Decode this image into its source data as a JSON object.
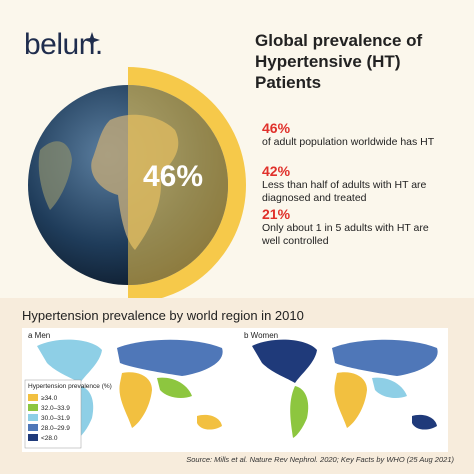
{
  "header": {
    "logo": "belun.",
    "title": "Global prevalence of Hypertensive (HT) Patients"
  },
  "globe": {
    "label": "46%"
  },
  "stats": [
    {
      "value": "46%",
      "text": "of adult population worldwide has HT"
    },
    {
      "value": "42%",
      "text": "Less than half of adults with HT are diagnosed and treated"
    },
    {
      "value": "21%",
      "text": "Only about 1 in 5 adults with HT are well controlled"
    }
  ],
  "maps": {
    "title": "Hypertension prevalence by world region in 2010",
    "panels": [
      "a Men",
      "b Women"
    ],
    "legend": {
      "title": "Hypertension prevalence (%)",
      "items": [
        {
          "label": "≥34.0",
          "color": "#f2c040"
        },
        {
          "label": "32.0–33.9",
          "color": "#8dc63f"
        },
        {
          "label": "30.0–31.9",
          "color": "#8ecfe6"
        },
        {
          "label": "28.0–29.9",
          "color": "#4f77b8"
        },
        {
          "label": "<28.0",
          "color": "#1f3a7a"
        }
      ]
    }
  },
  "footer": {
    "source": "Source: Mills et al. Nature Rev Nephrol. 2020; Key Facts by WHO (25 Aug 2021)"
  }
}
